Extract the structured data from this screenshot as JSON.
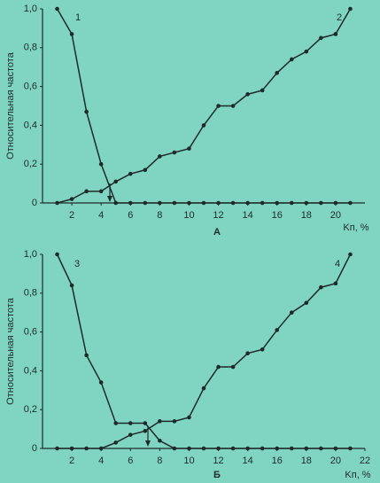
{
  "chart_data": [
    {
      "type": "line",
      "panel_label": "А",
      "ylabel": "Относительная частота",
      "xlabel": "Kп, %",
      "x": [
        1,
        2,
        3,
        4,
        5,
        6,
        7,
        8,
        9,
        10,
        11,
        12,
        13,
        14,
        15,
        16,
        17,
        18,
        19,
        20,
        21
      ],
      "series": [
        {
          "name": "1",
          "color": "#1e2a2a",
          "values": [
            1.0,
            0.87,
            0.47,
            0.2,
            0,
            0,
            0,
            0,
            0,
            0,
            0,
            0,
            0,
            0,
            0,
            0,
            0,
            0,
            0,
            0,
            0
          ]
        },
        {
          "name": "2",
          "color": "#1e2a2a",
          "values": [
            0,
            0.02,
            0.06,
            0.06,
            0.11,
            0.15,
            0.17,
            0.24,
            0.26,
            0.28,
            0.4,
            0.5,
            0.5,
            0.56,
            0.58,
            0.67,
            0.74,
            0.78,
            0.85,
            0.87,
            1.0
          ]
        }
      ],
      "xlim": [
        0,
        22
      ],
      "xticks": [
        2,
        4,
        6,
        8,
        10,
        12,
        14,
        16,
        18,
        20
      ],
      "ylim": [
        0,
        1
      ],
      "yticks": [
        {
          "value": 0,
          "label": "0"
        },
        {
          "value": 0.2,
          "label": "0,2"
        },
        {
          "value": 0.4,
          "label": "0,4"
        },
        {
          "value": 0.6,
          "label": "0,6"
        },
        {
          "value": 0.8,
          "label": "0,8"
        },
        {
          "value": 1.0,
          "label": "1,0"
        }
      ]
    },
    {
      "type": "line",
      "panel_label": "Б",
      "ylabel": "Относительная частота",
      "xlabel": "Kп, %",
      "x": [
        1,
        2,
        3,
        4,
        5,
        6,
        7,
        8,
        9,
        10,
        11,
        12,
        13,
        14,
        15,
        16,
        17,
        18,
        19,
        20,
        21
      ],
      "series": [
        {
          "name": "3",
          "color": "#1e2a2a",
          "values": [
            1.0,
            0.84,
            0.48,
            0.34,
            0.13,
            0.13,
            0.13,
            0.04,
            0,
            0,
            0,
            0,
            0,
            0,
            0,
            0,
            0,
            0,
            0,
            0,
            0
          ]
        },
        {
          "name": "4",
          "color": "#1e2a2a",
          "values": [
            0,
            0,
            0,
            0,
            0.03,
            0.07,
            0.09,
            0.14,
            0.14,
            0.16,
            0.31,
            0.42,
            0.42,
            0.49,
            0.51,
            0.61,
            0.7,
            0.75,
            0.83,
            0.85,
            1.0
          ]
        }
      ],
      "xlim": [
        0,
        22
      ],
      "xticks": [
        2,
        4,
        6,
        8,
        10,
        12,
        14,
        16,
        18,
        20,
        22
      ],
      "ylim": [
        0,
        1
      ],
      "yticks": [
        {
          "value": 0,
          "label": "0"
        },
        {
          "value": 0.2,
          "label": "0,2"
        },
        {
          "value": 0.4,
          "label": "0,4"
        },
        {
          "value": 0.6,
          "label": "0,6"
        },
        {
          "value": 0.8,
          "label": "0,8"
        },
        {
          "value": 1.0,
          "label": "1,0"
        }
      ]
    }
  ]
}
